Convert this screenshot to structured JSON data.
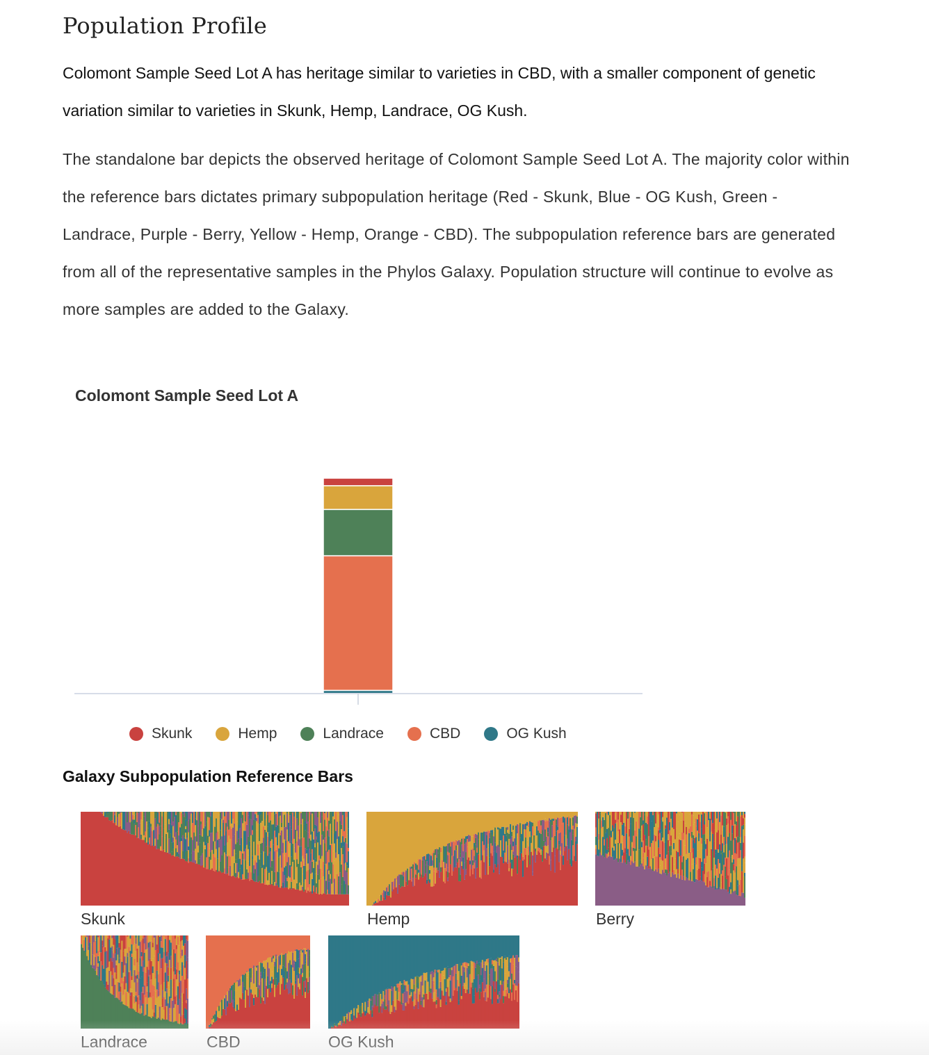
{
  "page": {
    "title": "Population Profile",
    "summary": "Colomont Sample Seed Lot A has heritage similar to varieties in CBD, with a smaller component of genetic variation similar to varieties in Skunk, Hemp, Landrace, OG Kush.",
    "description": "The standalone bar depicts the observed heritage of Colomont Sample Seed Lot A. The majority color within the reference bars dictates primary subpopulation heritage (Red - Skunk, Blue - OG Kush, Green - Landrace, Purple - Berry, Yellow - Hemp, Orange - CBD). The subpopulation reference bars are generated from all of the representative samples in the Phylos Galaxy. Population structure will continue to evolve as more samples are added to the Galaxy."
  },
  "colors": {
    "Skunk": "#c9423f",
    "Hemp": "#d9a53c",
    "Landrace": "#4e8158",
    "CBD": "#e5704e",
    "OG Kush": "#2f7888",
    "Berry": "#8a5d86"
  },
  "chart_data": [
    {
      "type": "bar",
      "title": "Colomont Sample Seed Lot A",
      "stacked": true,
      "categories": [
        "Colomont Sample Seed Lot A"
      ],
      "series": [
        {
          "name": "OG Kush",
          "values": [
            1.5
          ]
        },
        {
          "name": "CBD",
          "values": [
            62.5
          ]
        },
        {
          "name": "Landrace",
          "values": [
            21.5
          ]
        },
        {
          "name": "Hemp",
          "values": [
            11.0
          ]
        },
        {
          "name": "Skunk",
          "values": [
            3.5
          ]
        }
      ],
      "ylim": [
        0,
        100
      ],
      "legend": [
        "Skunk",
        "Hemp",
        "Landrace",
        "CBD",
        "OG Kush"
      ],
      "legend_position": "bottom"
    },
    {
      "type": "area",
      "title": "Galaxy Subpopulation Reference Bars",
      "panels": [
        {
          "name": "Skunk",
          "dominant": "Skunk"
        },
        {
          "name": "Hemp",
          "dominant": "Hemp"
        },
        {
          "name": "Berry",
          "dominant": "Berry"
        },
        {
          "name": "Landrace",
          "dominant": "Landrace"
        },
        {
          "name": "CBD",
          "dominant": "CBD"
        },
        {
          "name": "OG Kush",
          "dominant": "OG Kush"
        }
      ]
    }
  ]
}
